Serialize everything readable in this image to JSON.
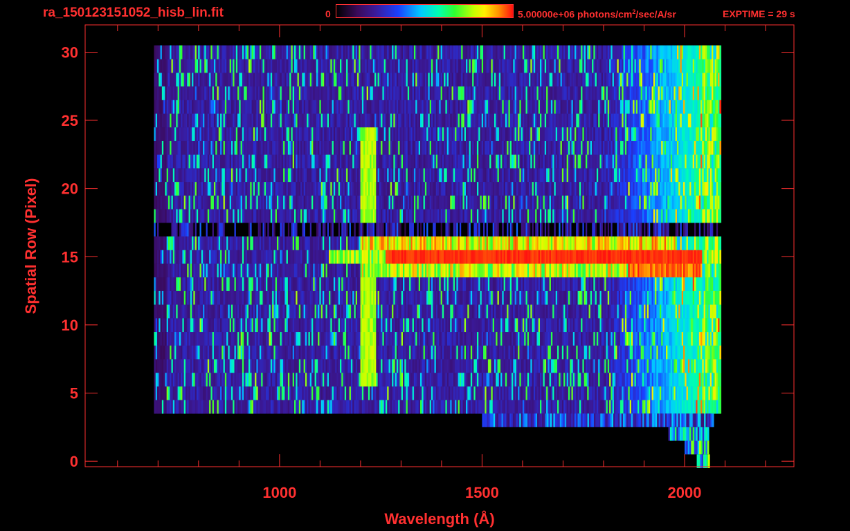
{
  "header": {
    "file_title": "ra_150123151052_hisb_lin.fit",
    "colorbar_min_label": "0",
    "colorbar_max_label": "5.00000e+06 photons/cm",
    "colorbar_max_label_sup": "2",
    "colorbar_max_label_suffix": "/sec/A/sr",
    "exptime_label": "EXPTIME = 29 s"
  },
  "colors": {
    "axis": "#ff3030",
    "background": "#000000"
  },
  "chart_data": {
    "type": "heatmap",
    "title": "ra_150123151052_hisb_lin.fit",
    "xlabel": "Wavelength (Å)",
    "ylabel": "Spatial Row (Pixel)",
    "xlim": [
      520,
      2270
    ],
    "ylim": [
      -0.4,
      32
    ],
    "x_ticks": [
      1000,
      1500,
      2000
    ],
    "y_ticks": [
      0,
      5,
      10,
      15,
      20,
      25,
      30
    ],
    "x_tick_labels": [
      "1000",
      "1500",
      "2000"
    ],
    "y_tick_labels": [
      "0",
      "5",
      "10",
      "15",
      "20",
      "25",
      "30"
    ],
    "grid": false,
    "colorbar": {
      "min": 0,
      "max": 5000000,
      "units": "photons/cm^2/sec/A/sr",
      "colormap": [
        "#000000",
        "#3a0a5a",
        "#3a1a9a",
        "#1a40ff",
        "#00ccff",
        "#00ffb0",
        "#30ff30",
        "#c8ff00",
        "#ffee00",
        "#ff9000",
        "#ff1010"
      ]
    },
    "x_range_data": [
      690,
      2090
    ],
    "rows": 31,
    "features": [
      {
        "label": "bright continuum",
        "row": 15,
        "x_start": 1260,
        "x_end": 2040,
        "level": 1.0
      },
      {
        "label": "emission line",
        "wavelength": 1216,
        "row_start": 6,
        "row_end": 24,
        "level": 0.62
      },
      {
        "label": "dark gap row",
        "row": 17,
        "x_start": 690,
        "x_end": 2090,
        "level": 0.0
      },
      {
        "label": "red edge",
        "wavelength": 2060,
        "row_start": 4,
        "row_end": 30,
        "level": 0.8
      }
    ]
  }
}
